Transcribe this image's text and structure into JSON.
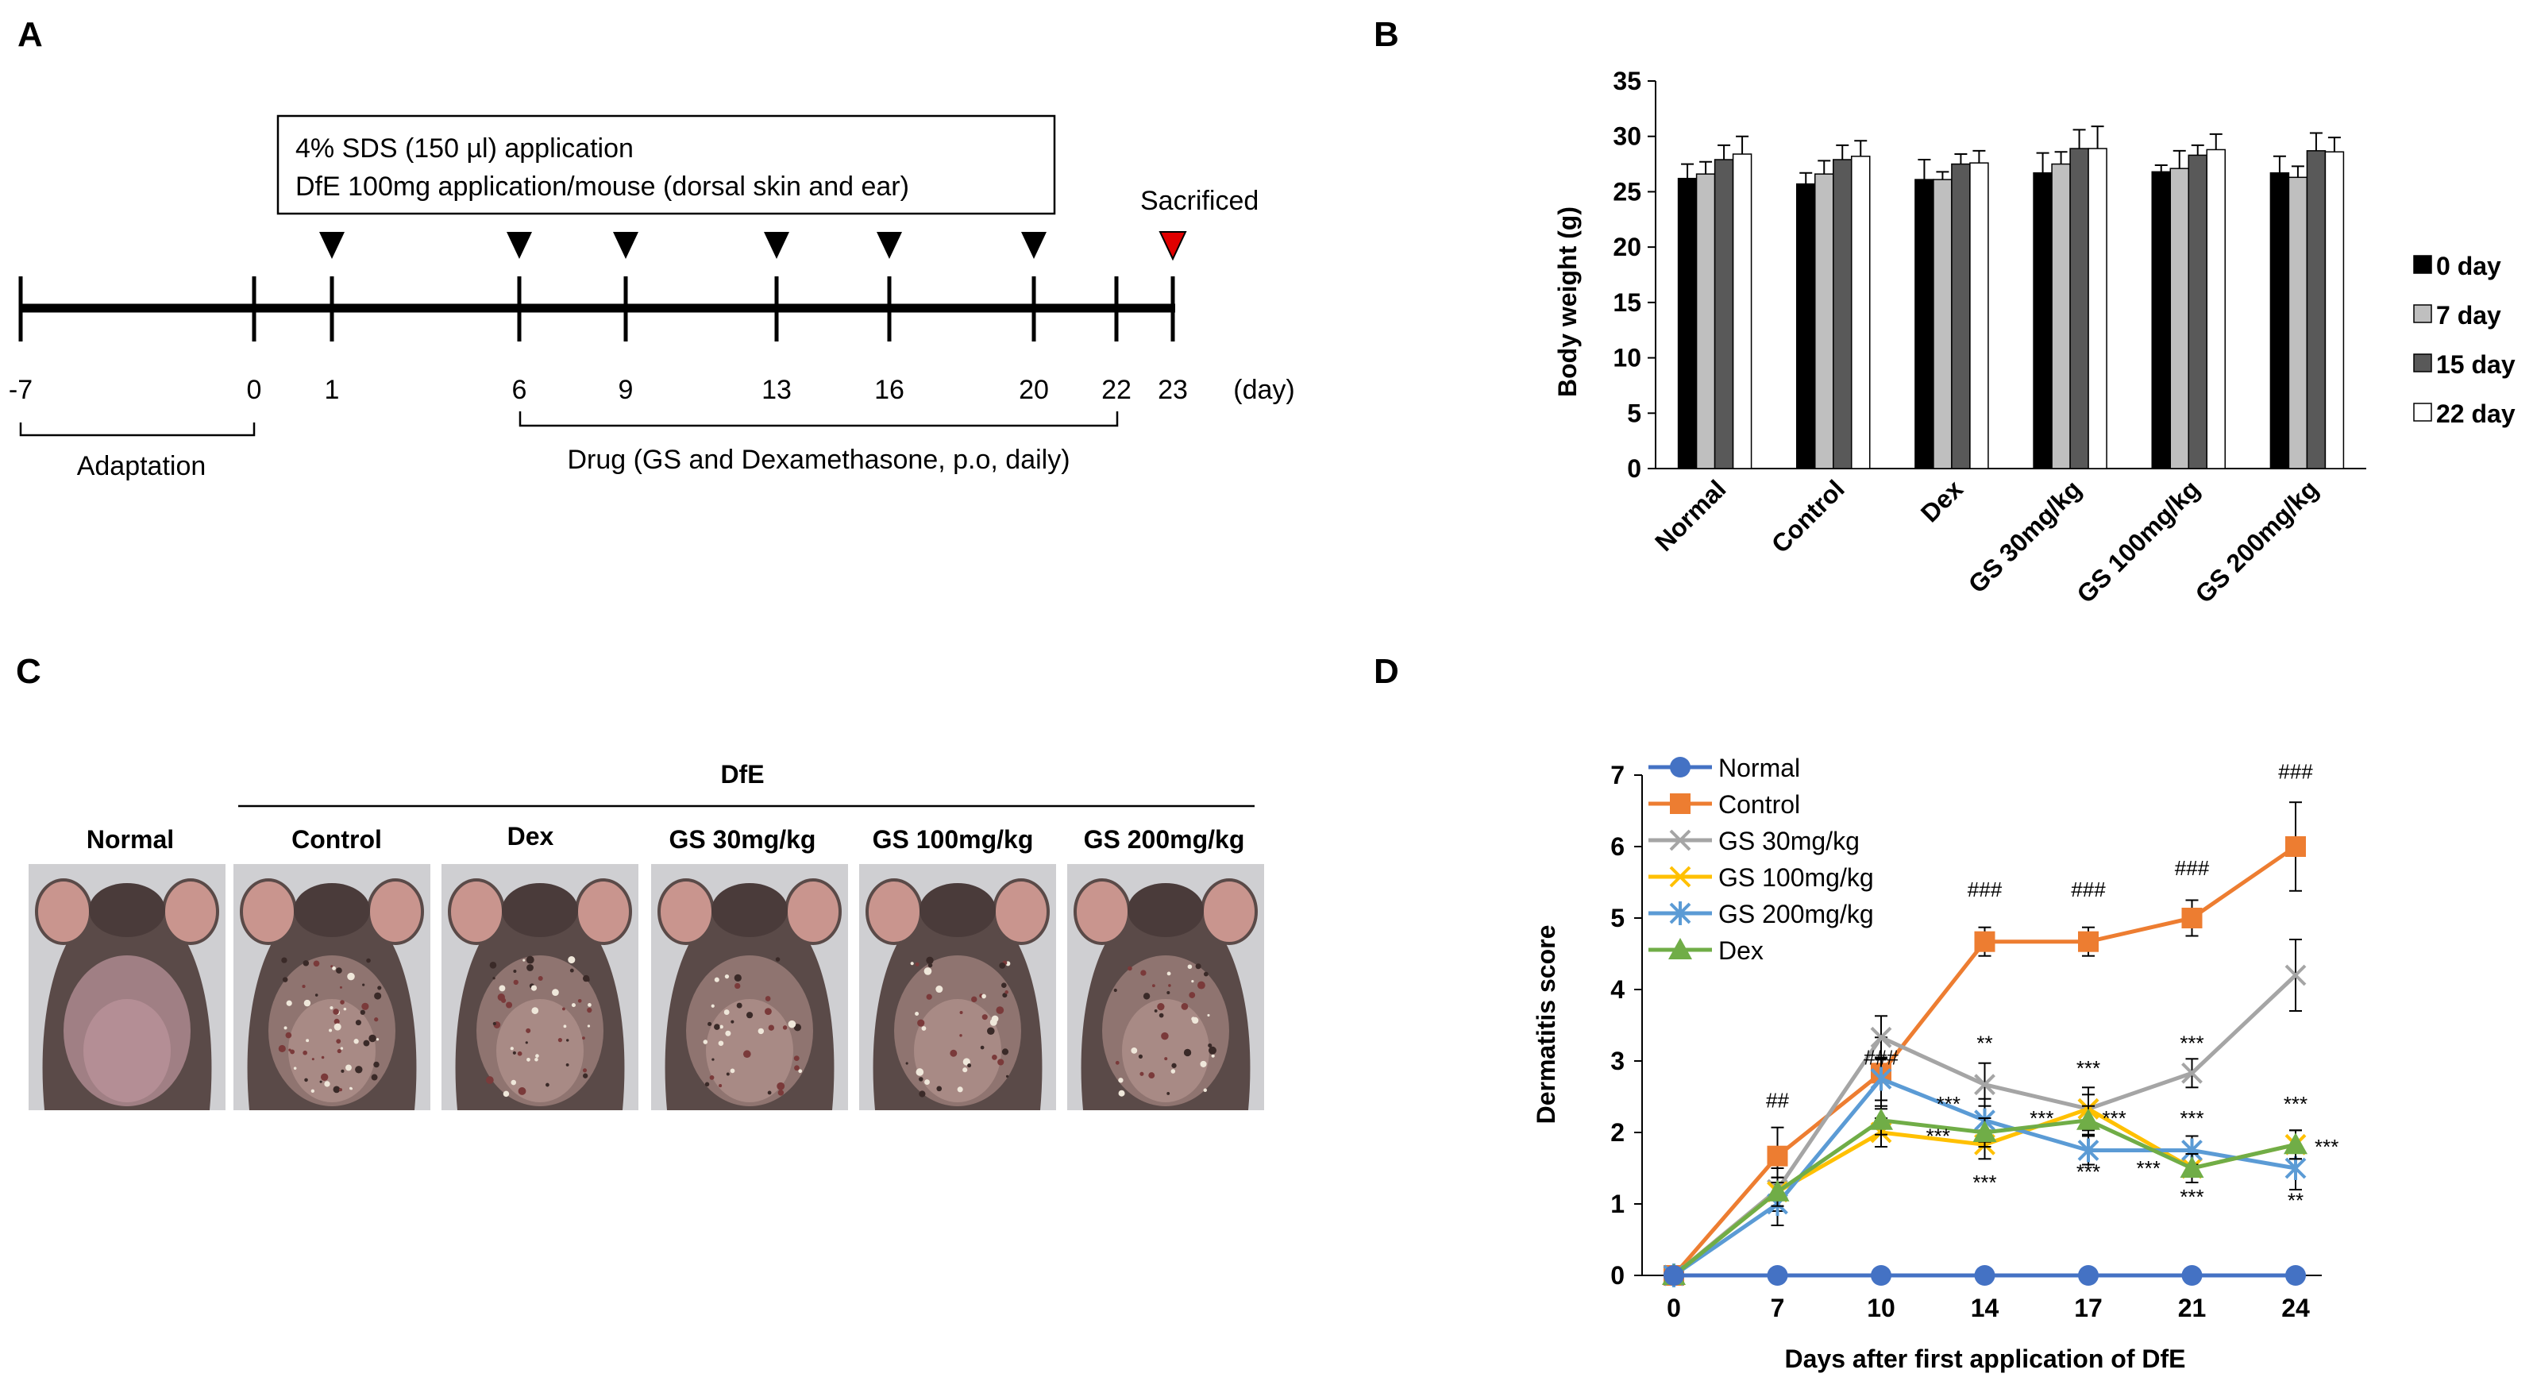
{
  "panels": {
    "a": {
      "letter": "A",
      "box_line1": "4% SDS (150 µl) application",
      "box_line2": "DfE 100mg application/mouse (dorsal skin and ear)",
      "sacrificed": "Sacrificed",
      "ticks": [
        "-7",
        "0",
        "1",
        "6",
        "9",
        "13",
        "16",
        "20",
        "22",
        "23"
      ],
      "unit": "(day)",
      "application_days": [
        "1",
        "6",
        "9",
        "13",
        "16",
        "20"
      ],
      "sacrifice_day": "23",
      "adaptation": "Adaptation",
      "drug": "Drug (GS and Dexamethasone, p.o, daily)"
    },
    "b": {
      "letter": "B"
    },
    "c": {
      "letter": "C",
      "dfe": "DfE",
      "labels": [
        "Normal",
        "Control",
        "Dex",
        "GS 30mg/kg",
        "GS 100mg/kg",
        "GS 200mg/kg"
      ]
    },
    "d": {
      "letter": "D"
    }
  },
  "colors": {
    "normal": "#4472C4",
    "control": "#ED7D31",
    "gs30": "#A5A5A5",
    "gs100": "#FFC000",
    "gs200": "#5B9BD5",
    "dex": "#70AD47",
    "bar0": "#000000",
    "bar7": "#BFBFBF",
    "bar15": "#595959",
    "bar22": "#FFFFFF",
    "sacrifice_marker": "#E00000"
  },
  "chart_data": [
    {
      "type": "bar",
      "title": "",
      "ylabel": "Body weight (g)",
      "xlabel": "",
      "ylim": [
        0,
        35
      ],
      "yticks": [
        0,
        5,
        10,
        15,
        20,
        25,
        30,
        35
      ],
      "categories": [
        "Normal",
        "Control",
        "Dex",
        "GS 30mg/kg",
        "GS 100mg/kg",
        "GS 200mg/kg"
      ],
      "legend_position": "right",
      "series": [
        {
          "name": "0 day",
          "values": [
            26.2,
            25.7,
            26.1,
            26.7,
            26.8,
            26.7
          ],
          "errors": [
            1.3,
            1.0,
            1.8,
            1.8,
            0.6,
            1.5
          ]
        },
        {
          "name": "7 day",
          "values": [
            26.6,
            26.6,
            26.1,
            27.5,
            27.1,
            26.3
          ],
          "errors": [
            1.1,
            1.2,
            0.7,
            1.1,
            1.6,
            1.0
          ]
        },
        {
          "name": "15 day",
          "values": [
            27.9,
            27.9,
            27.5,
            28.9,
            28.3,
            28.7
          ],
          "errors": [
            1.3,
            1.3,
            0.9,
            1.7,
            0.9,
            1.6
          ]
        },
        {
          "name": "22 day",
          "values": [
            28.4,
            28.2,
            27.6,
            28.9,
            28.8,
            28.6
          ],
          "errors": [
            1.6,
            1.4,
            1.1,
            2.0,
            1.4,
            1.3
          ]
        }
      ]
    },
    {
      "type": "line",
      "title": "",
      "ylabel": "Dermatitis score",
      "xlabel": "Days after first application of DfE",
      "ylim": [
        0,
        7
      ],
      "yticks": [
        0,
        1,
        2,
        3,
        4,
        5,
        6,
        7
      ],
      "categories": [
        "0",
        "7",
        "10",
        "14",
        "17",
        "21",
        "24"
      ],
      "legend_position": "top-left",
      "series": [
        {
          "name": "Normal",
          "key": "normal",
          "marker": "circle",
          "values": [
            0,
            0,
            0,
            0,
            0,
            0,
            0
          ],
          "errors": [
            0,
            0,
            0,
            0,
            0,
            0,
            0
          ]
        },
        {
          "name": "Control",
          "key": "control",
          "marker": "square",
          "values": [
            0,
            1.67,
            2.83,
            4.67,
            4.67,
            5.0,
            6.0
          ],
          "errors": [
            0,
            0.4,
            0.5,
            0.2,
            0.2,
            0.25,
            0.62
          ]
        },
        {
          "name": "GS 30mg/kg",
          "key": "gs30",
          "marker": "x",
          "values": [
            0,
            1.2,
            3.33,
            2.67,
            2.33,
            2.83,
            4.2
          ],
          "errors": [
            0,
            0.3,
            0.3,
            0.3,
            0.3,
            0.2,
            0.5
          ]
        },
        {
          "name": "GS 100mg/kg",
          "key": "gs100",
          "marker": "x",
          "values": [
            0,
            1.17,
            2.0,
            1.83,
            2.33,
            1.5,
            1.83
          ],
          "errors": [
            0,
            0.2,
            0.2,
            0.2,
            0.2,
            0.2,
            0.2
          ]
        },
        {
          "name": "GS 200mg/kg",
          "key": "gs200",
          "marker": "star",
          "values": [
            0,
            1.0,
            2.75,
            2.17,
            1.75,
            1.75,
            1.5
          ],
          "errors": [
            0,
            0.3,
            0.3,
            0.3,
            0.2,
            0.2,
            0.3
          ]
        },
        {
          "name": "Dex",
          "key": "dex",
          "marker": "triangle",
          "values": [
            0,
            1.17,
            2.17,
            2.0,
            2.17,
            1.5,
            1.83
          ],
          "errors": [
            0,
            0.2,
            0.2,
            0.2,
            0.2,
            0.2,
            0.2
          ]
        }
      ],
      "annotations": [
        {
          "text": "##",
          "x": "7",
          "y": 2.35
        },
        {
          "text": "###",
          "x": "10",
          "y": 2.95
        },
        {
          "text": "###",
          "x": "14",
          "y": 5.3
        },
        {
          "text": "###",
          "x": "17",
          "y": 5.3
        },
        {
          "text": "###",
          "x": "21",
          "y": 5.6
        },
        {
          "text": "###",
          "x": "24",
          "y": 6.95
        },
        {
          "text": "**",
          "x": "14",
          "y": 3.15
        },
        {
          "text": "***",
          "x": "17",
          "y": 2.8
        },
        {
          "text": "***",
          "x": "21",
          "y": 3.15
        },
        {
          "text": "***",
          "x": "14",
          "y": 2.3,
          "dx": -0.35
        },
        {
          "text": "***",
          "x": "14",
          "y": 1.85,
          "dx": -0.45
        },
        {
          "text": "***",
          "x": "14",
          "y": 1.2
        },
        {
          "text": "***",
          "x": "17",
          "y": 2.1,
          "dx": -0.45
        },
        {
          "text": "***",
          "x": "17",
          "y": 2.1,
          "dx": 0.25
        },
        {
          "text": "***",
          "x": "17",
          "y": 1.35
        },
        {
          "text": "***",
          "x": "21",
          "y": 2.1
        },
        {
          "text": "***",
          "x": "21",
          "y": 1.4,
          "dx": -0.42
        },
        {
          "text": "***",
          "x": "21",
          "y": 1.0
        },
        {
          "text": "***",
          "x": "24",
          "y": 2.3
        },
        {
          "text": "***",
          "x": "24",
          "y": 1.7,
          "dx": 0.3
        },
        {
          "text": "**",
          "x": "24",
          "y": 0.95
        }
      ]
    }
  ]
}
